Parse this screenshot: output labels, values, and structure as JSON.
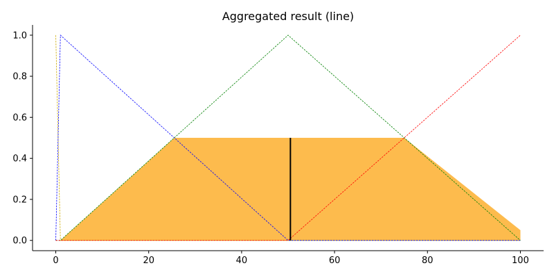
{
  "chart_data": {
    "type": "area",
    "title": "Aggregated result (line)",
    "xlabel": "",
    "ylabel": "",
    "xlim": [
      -5,
      105
    ],
    "ylim": [
      -0.05,
      1.05
    ],
    "xticks": [
      0,
      20,
      40,
      60,
      80,
      100
    ],
    "yticks": [
      0.0,
      0.2,
      0.4,
      0.6,
      0.8,
      1.0
    ],
    "xtick_labels": [
      "0",
      "20",
      "40",
      "60",
      "80",
      "100"
    ],
    "ytick_labels": [
      "0.0",
      "0.2",
      "0.4",
      "0.6",
      "0.8",
      "1.0"
    ],
    "grid": false,
    "legend": "none",
    "membership_functions": [
      {
        "color": "#ccaa00",
        "style": "dashed",
        "x": [
          0,
          1,
          100
        ],
        "y": [
          1.0,
          0.0,
          0.0
        ]
      },
      {
        "color": "#0000ff",
        "style": "dashed",
        "x": [
          0,
          1,
          50,
          100
        ],
        "y": [
          0.0,
          1.0,
          0.0,
          0.0
        ]
      },
      {
        "color": "#008000",
        "style": "dashed",
        "x": [
          0,
          1,
          50,
          100
        ],
        "y": [
          0.0,
          0.0,
          1.0,
          0.0
        ]
      },
      {
        "color": "#ff0000",
        "style": "dashed",
        "x": [
          0,
          50,
          100
        ],
        "y": [
          0.0,
          0.0,
          1.0
        ]
      }
    ],
    "aggregated_area": {
      "color": "#fdbb4d",
      "x": [
        1,
        25.5,
        75,
        100,
        100,
        1
      ],
      "y": [
        0.0,
        0.5,
        0.5,
        0.05,
        0.0,
        0.0
      ]
    },
    "extra_block": {
      "color": "#fdbb4d",
      "x": [
        97,
        100
      ],
      "y": [
        0.0,
        0.05
      ]
    },
    "defuzzified_line": {
      "color": "#000000",
      "x": 50.5,
      "y": [
        0.0,
        0.5
      ]
    }
  }
}
